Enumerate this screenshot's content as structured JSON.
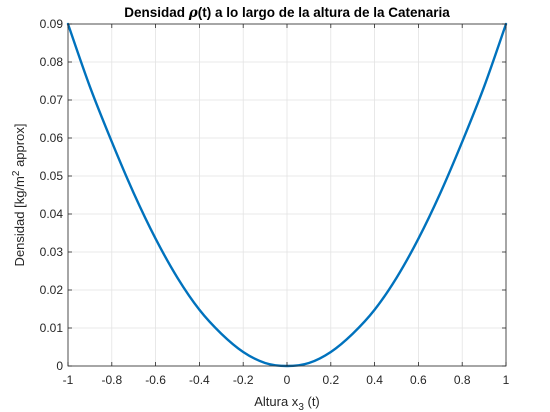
{
  "chart_data": {
    "type": "line",
    "title_parts": {
      "pre": "Densidad ",
      "rho": "ρ",
      "post": "(t) a lo largo de la altura de la Catenaria"
    },
    "xlabel_parts": {
      "main": "Altura x",
      "sub": "3",
      "post": " (t)"
    },
    "ylabel_parts": {
      "main": "Densidad [kg/m",
      "sup": "2",
      "post": " approx]"
    },
    "xlim": [
      -1,
      1
    ],
    "ylim": [
      0,
      0.09
    ],
    "xticks": [
      -1,
      -0.8,
      -0.6,
      -0.4,
      -0.2,
      0,
      0.2,
      0.4,
      0.6,
      0.8,
      1
    ],
    "xtick_labels": [
      "-1",
      "-0.8",
      "-0.6",
      "-0.4",
      "-0.2",
      "0",
      "0.2",
      "0.4",
      "0.6",
      "0.8",
      "1"
    ],
    "yticks": [
      0,
      0.01,
      0.02,
      0.03,
      0.04,
      0.05,
      0.06,
      0.07,
      0.08,
      0.09
    ],
    "ytick_labels": [
      "0",
      "0.01",
      "0.02",
      "0.03",
      "0.04",
      "0.05",
      "0.06",
      "0.07",
      "0.08",
      "0.09"
    ],
    "grid": true,
    "series": [
      {
        "color": "#0072BD",
        "x": [
          -1,
          -0.9,
          -0.8,
          -0.7,
          -0.6,
          -0.5,
          -0.4,
          -0.3,
          -0.2,
          -0.1,
          0,
          0.1,
          0.2,
          0.3,
          0.4,
          0.5,
          0.6,
          0.7,
          0.8,
          0.9,
          1
        ],
        "y": [
          0.09,
          0.0735,
          0.059,
          0.0455,
          0.0335,
          0.0232,
          0.0148,
          0.0085,
          0.0037,
          0.0008,
          0,
          0.0008,
          0.0037,
          0.0085,
          0.0148,
          0.0232,
          0.0335,
          0.0455,
          0.059,
          0.0735,
          0.09
        ]
      }
    ]
  }
}
